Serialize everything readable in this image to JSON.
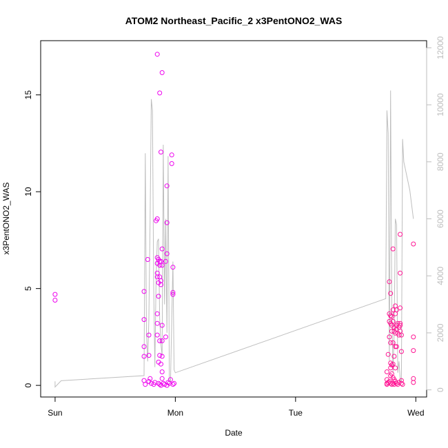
{
  "chart_data": {
    "type": "scatter",
    "title": "ATOM2 Northeast_Pacific_2 x3PentONO2_WAS",
    "xlabel": "Date",
    "ylabel": "x3PentONO2_WAS",
    "x_ticks": [
      "Sun",
      "Mon",
      "Tue",
      "Wed"
    ],
    "x_tick_days": [
      0,
      1,
      2,
      3
    ],
    "xlim": [
      -0.12,
      3.09
    ],
    "ylim": [
      -0.6,
      17.8
    ],
    "y_ticks": [
      0,
      5,
      10,
      15
    ],
    "y2lim": [
      -250,
      12250
    ],
    "y2_ticks": [
      0,
      2000,
      4000,
      6000,
      8000,
      10000,
      12000
    ],
    "grid": false,
    "colors": {
      "points": "#ee00ee",
      "points_alt": "#ff1493",
      "altitude_line": "#bebebe"
    },
    "series": [
      {
        "type": "scatter",
        "points": [
          [
            0.0,
            4.7
          ],
          [
            0.0,
            4.4
          ],
          [
            0.74,
            4.85
          ],
          [
            0.74,
            3.4
          ],
          [
            0.74,
            2.0
          ],
          [
            0.74,
            1.5
          ],
          [
            0.74,
            0.25
          ],
          [
            0.75,
            0.05
          ],
          [
            0.77,
            6.5
          ],
          [
            0.78,
            2.6
          ],
          [
            0.78,
            1.55
          ],
          [
            0.78,
            0.2
          ],
          [
            0.79,
            0.35
          ],
          [
            0.8,
            0.1
          ],
          [
            0.82,
            0.05
          ],
          [
            0.83,
            0.15
          ],
          [
            0.84,
            8.5
          ],
          [
            0.85,
            17.1
          ],
          [
            0.85,
            8.6
          ],
          [
            0.85,
            6.6
          ],
          [
            0.85,
            6.3
          ],
          [
            0.85,
            5.8
          ],
          [
            0.85,
            5.6
          ],
          [
            0.85,
            3.7
          ],
          [
            0.85,
            3.2
          ],
          [
            0.85,
            2.6
          ],
          [
            0.86,
            6.5
          ],
          [
            0.86,
            5.3
          ],
          [
            0.86,
            4.6
          ],
          [
            0.86,
            1.2
          ],
          [
            0.86,
            0.1
          ],
          [
            0.87,
            15.1
          ],
          [
            0.87,
            6.4
          ],
          [
            0.87,
            6.2
          ],
          [
            0.87,
            5.6
          ],
          [
            0.87,
            2.3
          ],
          [
            0.87,
            1.55
          ],
          [
            0.87,
            0.05
          ],
          [
            0.88,
            12.05
          ],
          [
            0.88,
            6.4
          ],
          [
            0.88,
            5.4
          ],
          [
            0.88,
            5.2
          ],
          [
            0.88,
            1.1
          ],
          [
            0.88,
            0.0
          ],
          [
            0.89,
            16.15
          ],
          [
            0.89,
            7.05
          ],
          [
            0.89,
            6.2
          ],
          [
            0.89,
            3.1
          ],
          [
            0.89,
            2.3
          ],
          [
            0.89,
            1.5
          ],
          [
            0.89,
            0.7
          ],
          [
            0.89,
            0.35
          ],
          [
            0.9,
            0.1
          ],
          [
            0.91,
            0.05
          ],
          [
            0.92,
            6.4
          ],
          [
            0.92,
            2.5
          ],
          [
            0.93,
            10.3
          ],
          [
            0.93,
            8.4
          ],
          [
            0.93,
            6.8
          ],
          [
            0.93,
            0.0
          ],
          [
            0.94,
            0.15
          ],
          [
            0.95,
            0.1
          ],
          [
            0.96,
            0.3
          ],
          [
            0.97,
            11.9
          ],
          [
            0.97,
            11.45
          ],
          [
            0.98,
            6.1
          ],
          [
            0.98,
            4.8
          ],
          [
            0.98,
            4.7
          ],
          [
            0.98,
            0.05
          ],
          [
            0.99,
            0.1
          ],
          [
            2.76,
            0.7
          ],
          [
            2.76,
            0.3
          ],
          [
            2.76,
            0.1
          ],
          [
            2.76,
            0.05
          ],
          [
            2.77,
            1.6
          ],
          [
            2.77,
            0.15
          ],
          [
            2.78,
            5.35
          ],
          [
            2.78,
            3.7
          ],
          [
            2.78,
            3.3
          ],
          [
            2.78,
            2.5
          ],
          [
            2.78,
            0.2
          ],
          [
            2.79,
            4.75
          ],
          [
            2.79,
            3.6
          ],
          [
            2.79,
            3.2
          ],
          [
            2.79,
            2.2
          ],
          [
            2.79,
            1.15
          ],
          [
            2.79,
            0.9
          ],
          [
            2.79,
            0.5
          ],
          [
            2.79,
            0.1
          ],
          [
            2.8,
            3.55
          ],
          [
            2.8,
            3.1
          ],
          [
            2.8,
            2.8
          ],
          [
            2.8,
            1.05
          ],
          [
            2.8,
            0.6
          ],
          [
            2.8,
            0.05
          ],
          [
            2.81,
            7.05
          ],
          [
            2.81,
            3.9
          ],
          [
            2.81,
            3.3
          ],
          [
            2.81,
            2.2
          ],
          [
            2.81,
            1.1
          ],
          [
            2.81,
            0.4
          ],
          [
            2.81,
            0.1
          ],
          [
            2.82,
            3.0
          ],
          [
            2.82,
            2.8
          ],
          [
            2.82,
            1.5
          ],
          [
            2.82,
            0.3
          ],
          [
            2.82,
            0.05
          ],
          [
            2.83,
            4.1
          ],
          [
            2.83,
            3.7
          ],
          [
            2.83,
            2.7
          ],
          [
            2.83,
            2.0
          ],
          [
            2.83,
            0.9
          ],
          [
            2.83,
            0.2
          ],
          [
            2.84,
            3.9
          ],
          [
            2.84,
            3.1
          ],
          [
            2.84,
            2.9
          ],
          [
            2.84,
            2.0
          ],
          [
            2.84,
            0.1
          ],
          [
            2.85,
            3.2
          ],
          [
            2.85,
            2.7
          ],
          [
            2.85,
            0.05
          ],
          [
            2.86,
            3.0
          ],
          [
            2.86,
            2.6
          ],
          [
            2.86,
            0.15
          ],
          [
            2.87,
            7.8
          ],
          [
            2.87,
            5.8
          ],
          [
            2.87,
            4.0
          ],
          [
            2.87,
            3.1
          ],
          [
            2.87,
            3.2
          ],
          [
            2.87,
            2.8
          ],
          [
            2.88,
            2.6
          ],
          [
            2.88,
            1.75
          ],
          [
            2.88,
            0.25
          ],
          [
            2.88,
            0.1
          ],
          [
            2.89,
            0.05
          ],
          [
            2.98,
            7.3
          ],
          [
            2.98,
            2.5
          ],
          [
            2.98,
            1.8
          ],
          [
            2.98,
            0.35
          ],
          [
            2.98,
            0.15
          ]
        ]
      },
      {
        "type": "line",
        "axis": "right",
        "x": [
          0.0,
          0.0,
          0.05,
          0.74,
          0.75,
          0.76,
          0.77,
          0.78,
          0.79,
          0.8,
          0.81,
          0.82,
          0.83,
          0.84,
          0.85,
          0.86,
          0.87,
          0.88,
          0.89,
          0.9,
          0.91,
          0.92,
          0.93,
          0.94,
          0.95,
          0.96,
          0.97,
          0.98,
          0.99,
          1.0,
          1.0,
          2.75,
          2.76,
          2.77,
          2.78,
          2.79,
          2.8,
          2.81,
          2.82,
          2.83,
          2.84,
          2.85,
          2.86,
          2.87,
          2.88,
          2.89,
          2.9,
          2.95,
          2.98,
          2.98
        ],
        "y": [
          300,
          100,
          320,
          500,
          8300,
          2000,
          1000,
          2500,
          6000,
          10200,
          9800,
          3500,
          800,
          4000,
          5200,
          5300,
          2500,
          1600,
          1200,
          8600,
          3000,
          6000,
          2000,
          8200,
          400,
          300,
          2500,
          4500,
          700,
          600,
          600,
          3200,
          9800,
          9000,
          1000,
          10500,
          3000,
          600,
          2000,
          6000,
          5800,
          600,
          1000,
          400,
          300,
          8800,
          8000,
          7000,
          6000,
          6000
        ]
      }
    ]
  }
}
